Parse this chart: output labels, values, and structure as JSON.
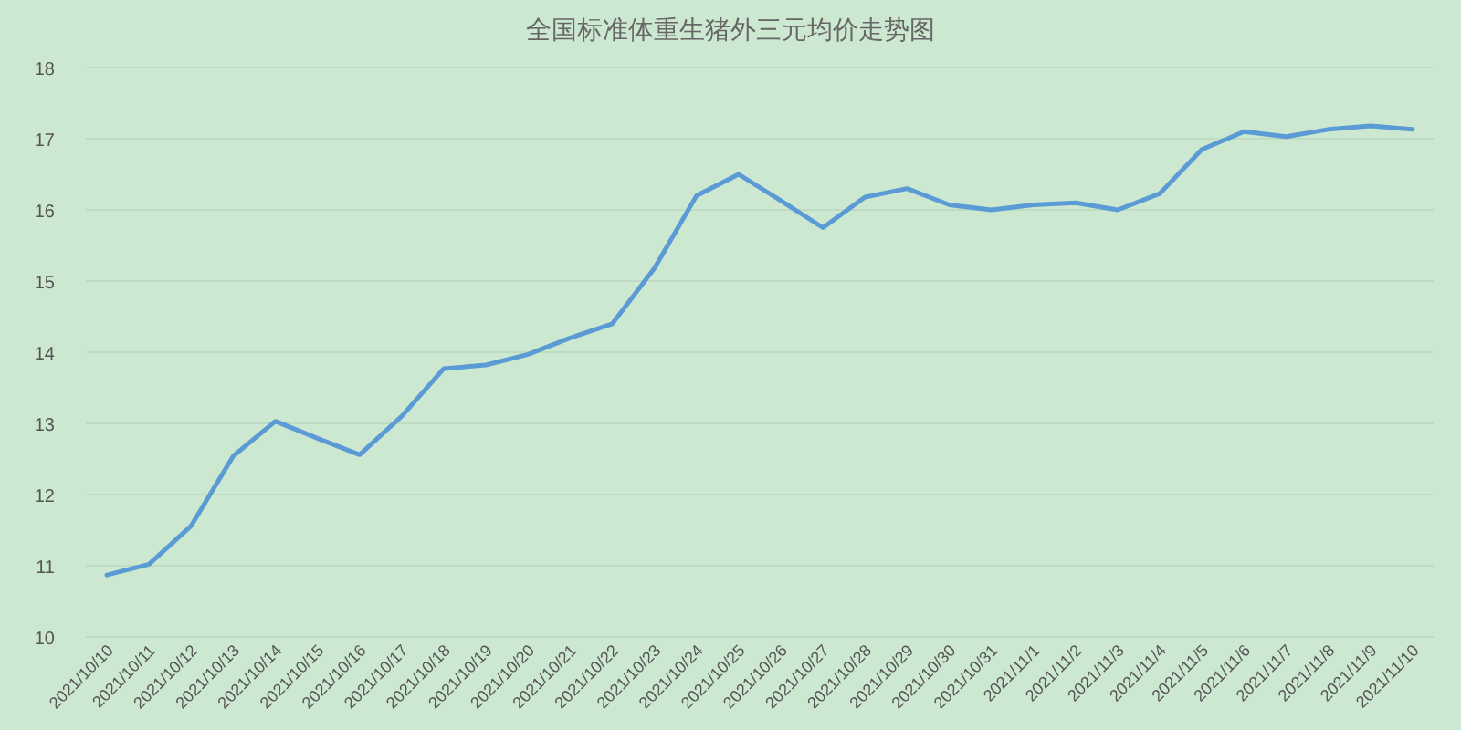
{
  "chart_data": {
    "type": "line",
    "title": "全国标准体重生猪外三元均价走势图",
    "categories": [
      "2021/10/10",
      "2021/10/11",
      "2021/10/12",
      "2021/10/13",
      "2021/10/14",
      "2021/10/15",
      "2021/10/16",
      "2021/10/17",
      "2021/10/18",
      "2021/10/19",
      "2021/10/20",
      "2021/10/21",
      "2021/10/22",
      "2021/10/23",
      "2021/10/24",
      "2021/10/25",
      "2021/10/26",
      "2021/10/27",
      "2021/10/28",
      "2021/10/29",
      "2021/10/30",
      "2021/10/31",
      "2021/11/1",
      "2021/11/2",
      "2021/11/3",
      "2021/11/4",
      "2021/11/5",
      "2021/11/6",
      "2021/11/7",
      "2021/11/8",
      "2021/11/9",
      "2021/11/10"
    ],
    "series": [
      {
        "color": "#5b9bd5",
        "values": [
          10.87,
          11.02,
          11.56,
          12.54,
          13.03,
          12.79,
          12.56,
          13.1,
          13.77,
          13.82,
          13.97,
          14.2,
          14.4,
          15.18,
          16.2,
          16.5,
          16.13,
          15.75,
          16.18,
          16.3,
          16.07,
          16.0,
          16.07,
          16.1,
          16.0,
          16.23,
          16.85,
          17.1,
          17.03,
          17.13,
          17.18,
          17.13
        ]
      }
    ],
    "ylim": [
      10,
      18
    ],
    "yticks": [
      10,
      11,
      12,
      13,
      14,
      15,
      16,
      17,
      18
    ],
    "grid": "y",
    "marker": "none",
    "line_style": "solid"
  }
}
